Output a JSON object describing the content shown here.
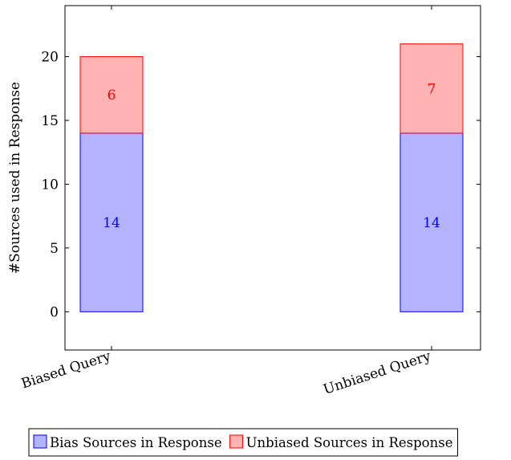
{
  "chart_data": {
    "type": "bar",
    "stacked": true,
    "categories": [
      "Biased Query",
      "Unbiased Query"
    ],
    "series": [
      {
        "name": "Bias Sources in Response",
        "values": [
          14,
          14
        ],
        "color": "#b3b3ff",
        "stroke": "#0000ff",
        "label_color": "#0000ff"
      },
      {
        "name": "Unbiased Sources in Response",
        "values": [
          6,
          7
        ],
        "color": "#ffb3b3",
        "stroke": "#ff0000",
        "label_color": "#ff0000"
      }
    ],
    "title": "",
    "xlabel": "",
    "ylabel": "#Sources used in Response",
    "ylim": [
      -3,
      24
    ],
    "yticks": [
      0,
      5,
      10,
      15,
      20
    ],
    "grid": false,
    "legend_position": "bottom"
  }
}
